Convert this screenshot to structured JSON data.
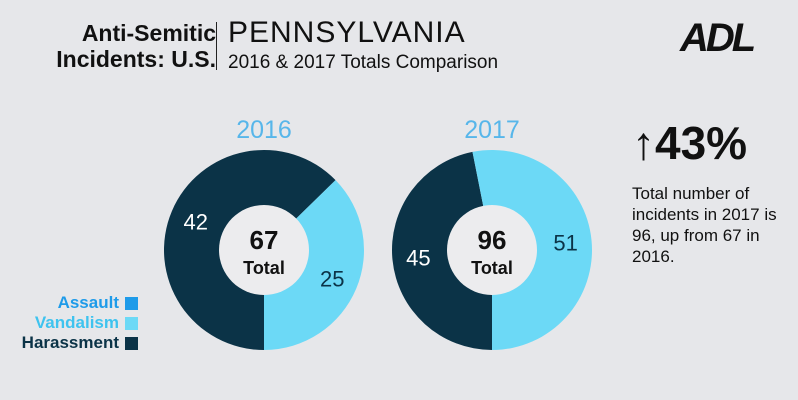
{
  "header": {
    "title_line1": "Anti-Semitic",
    "title_line2": "Incidents: U.S.",
    "state": "PENNSYLVANIA",
    "subtitle": "2016 & 2017 Totals Comparison",
    "logo": "ADL"
  },
  "colors": {
    "Assault": "#1e9be9",
    "Vandalism": "#6cd9f6",
    "Harassment": "#0b3347",
    "year": "#57b6ea"
  },
  "chart_data": [
    {
      "type": "pie",
      "title": "2016",
      "categories": [
        "Assault",
        "Vandalism",
        "Harassment"
      ],
      "values": [
        0,
        25,
        42
      ],
      "total": 67,
      "total_label": "Total"
    },
    {
      "type": "pie",
      "title": "2017",
      "categories": [
        "Assault",
        "Vandalism",
        "Harassment"
      ],
      "values": [
        0,
        51,
        45
      ],
      "total": 96,
      "total_label": "Total"
    }
  ],
  "legend": [
    {
      "label": "Assault"
    },
    {
      "label": "Vandalism"
    },
    {
      "label": "Harassment"
    }
  ],
  "callout": {
    "arrow": "↑",
    "value": "43%",
    "text": "Total number of incidents in 2017 is 96, up from 67 in 2016."
  }
}
